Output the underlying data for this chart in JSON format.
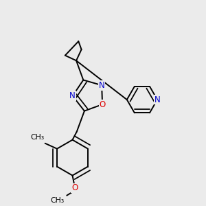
{
  "background_color": "#ebebeb",
  "bond_color": "#000000",
  "bond_width": 1.4,
  "atom_colors": {
    "N": "#0000cc",
    "O": "#dd0000"
  }
}
